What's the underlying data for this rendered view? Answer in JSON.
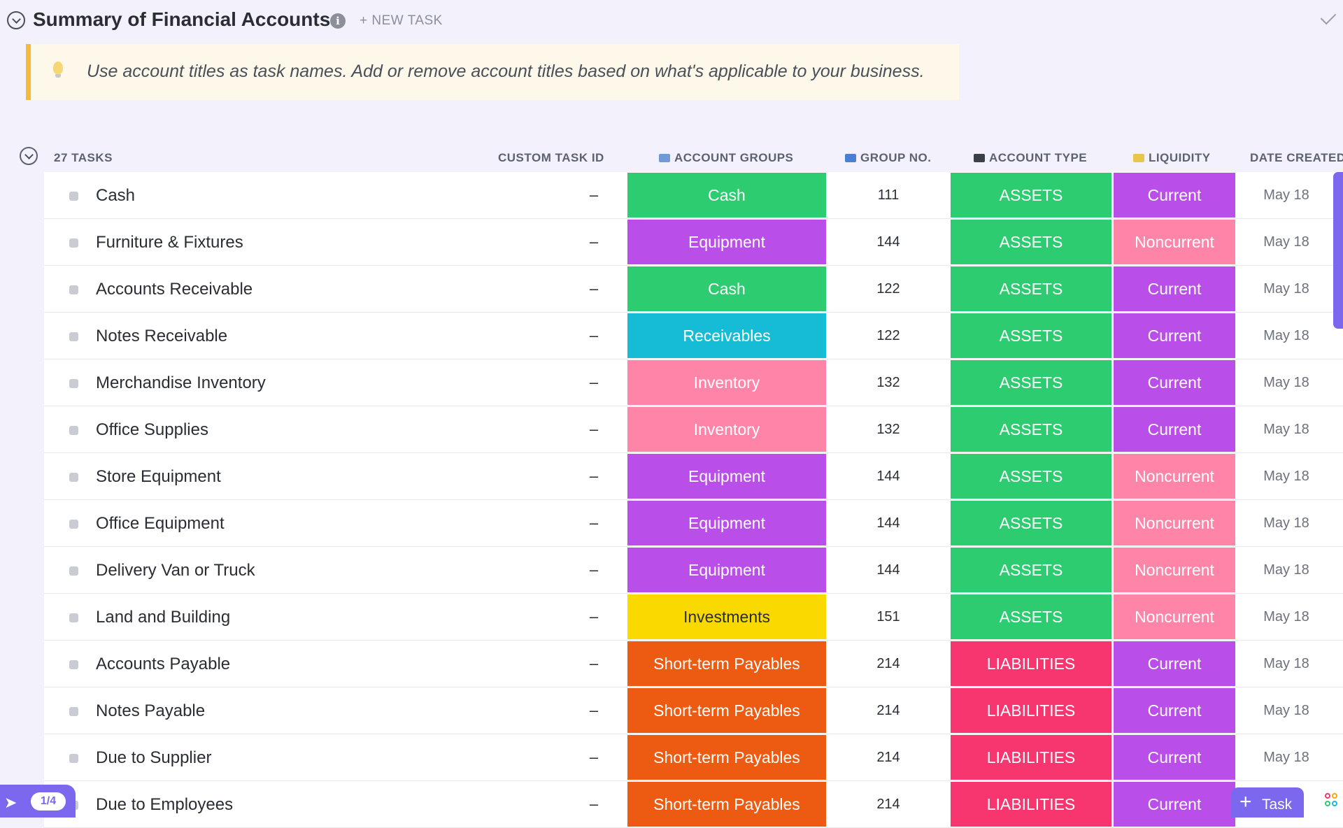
{
  "header": {
    "title": "Summary of Financial Accounts",
    "info_icon": "i",
    "new_task": "+ NEW TASK"
  },
  "banner": {
    "icon": "lightbulb-icon",
    "text": "Use account titles as task names. Add or remove account titles based on what's applicable to your business."
  },
  "list": {
    "task_count": "27 TASKS",
    "columns": {
      "custom_task_id": "CUSTOM TASK ID",
      "account_groups": "ACCOUNT GROUPS",
      "group_no": "GROUP NO.",
      "account_type": "ACCOUNT TYPE",
      "liquidity": "LIQUIDITY",
      "date_created": "DATE CREATED"
    },
    "rows": [
      {
        "name": "Cash",
        "custom_id": "–",
        "group": "Cash",
        "group_no": "111",
        "type": "ASSETS",
        "liquidity": "Current",
        "date": "May 18"
      },
      {
        "name": "Furniture & Fixtures",
        "custom_id": "–",
        "group": "Equipment",
        "group_no": "144",
        "type": "ASSETS",
        "liquidity": "Noncurrent",
        "date": "May 18"
      },
      {
        "name": "Accounts Receivable",
        "custom_id": "–",
        "group": "Cash",
        "group_no": "122",
        "type": "ASSETS",
        "liquidity": "Current",
        "date": "May 18"
      },
      {
        "name": "Notes Receivable",
        "custom_id": "–",
        "group": "Receivables",
        "group_no": "122",
        "type": "ASSETS",
        "liquidity": "Current",
        "date": "May 18"
      },
      {
        "name": "Merchandise Inventory",
        "custom_id": "–",
        "group": "Inventory",
        "group_no": "132",
        "type": "ASSETS",
        "liquidity": "Current",
        "date": "May 18"
      },
      {
        "name": "Office Supplies",
        "custom_id": "–",
        "group": "Inventory",
        "group_no": "132",
        "type": "ASSETS",
        "liquidity": "Current",
        "date": "May 18"
      },
      {
        "name": "Store Equipment",
        "custom_id": "–",
        "group": "Equipment",
        "group_no": "144",
        "type": "ASSETS",
        "liquidity": "Noncurrent",
        "date": "May 18"
      },
      {
        "name": "Office Equipment",
        "custom_id": "–",
        "group": "Equipment",
        "group_no": "144",
        "type": "ASSETS",
        "liquidity": "Noncurrent",
        "date": "May 18"
      },
      {
        "name": "Delivery Van or Truck",
        "custom_id": "–",
        "group": "Equipment",
        "group_no": "144",
        "type": "ASSETS",
        "liquidity": "Noncurrent",
        "date": "May 18"
      },
      {
        "name": "Land and Building",
        "custom_id": "–",
        "group": "Investments",
        "group_no": "151",
        "type": "ASSETS",
        "liquidity": "Noncurrent",
        "date": "May 18"
      },
      {
        "name": "Accounts Payable",
        "custom_id": "–",
        "group": "Short-term Payables",
        "group_no": "214",
        "type": "LIABILITIES",
        "liquidity": "Current",
        "date": "May 18"
      },
      {
        "name": "Notes Payable",
        "custom_id": "–",
        "group": "Short-term Payables",
        "group_no": "214",
        "type": "LIABILITIES",
        "liquidity": "Current",
        "date": "May 18"
      },
      {
        "name": "Due to Supplier",
        "custom_id": "–",
        "group": "Short-term Payables",
        "group_no": "214",
        "type": "LIABILITIES",
        "liquidity": "Current",
        "date": "May 18"
      },
      {
        "name": "Due to Employees",
        "custom_id": "–",
        "group": "Short-term Payables",
        "group_no": "214",
        "type": "LIABILITIES",
        "liquidity": "Current",
        "date": "18"
      }
    ]
  },
  "colors": {
    "Cash": "#2ecc71",
    "Equipment": "#b94fe8",
    "Receivables": "#16bcd6",
    "Inventory": "#ff85a8",
    "Investments": "#f9d900",
    "Short-term Payables": "#ed5a12",
    "ASSETS": "#2ecc71",
    "LIABILITIES": "#f7366f",
    "Current": "#b94fe8",
    "Noncurrent": "#ff85a8",
    "accent": "#7b68ee"
  },
  "footer": {
    "rocket_icon": "rocket-icon",
    "progress": "1/4",
    "task_button": "Task",
    "apps_icon": "apps-icon"
  }
}
